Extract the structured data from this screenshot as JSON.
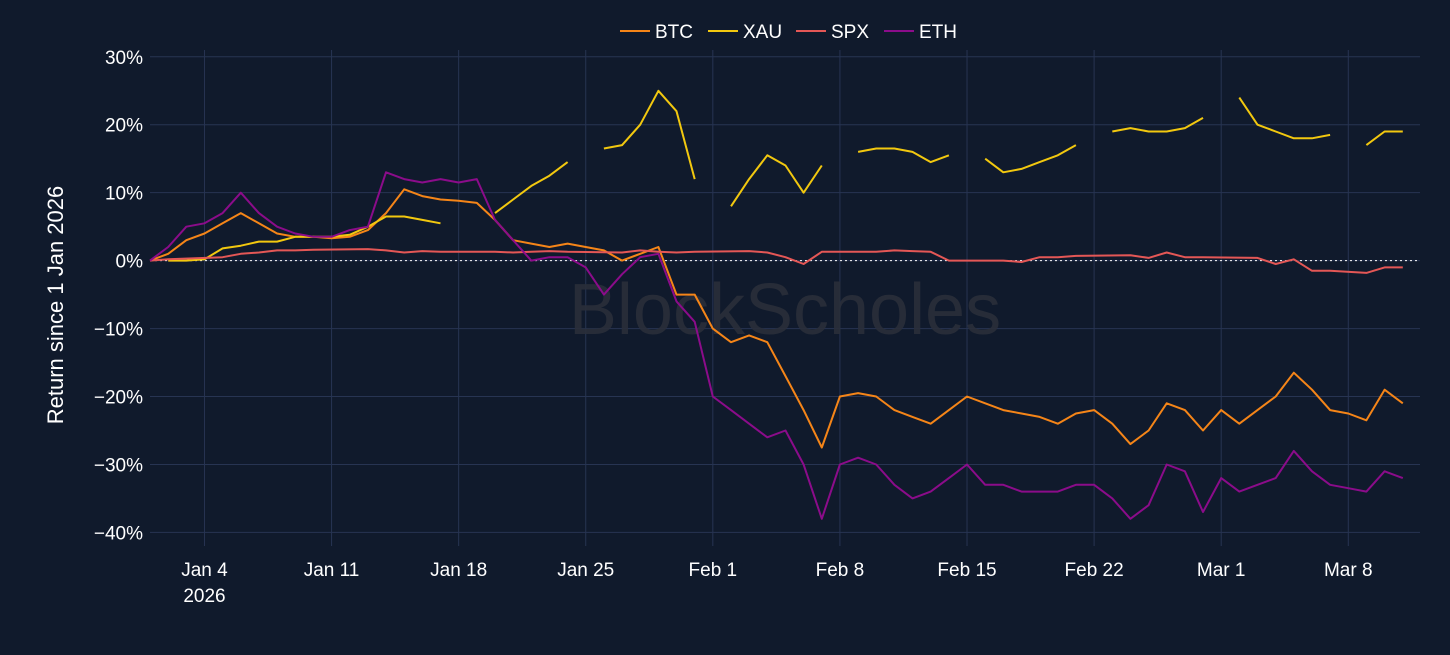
{
  "colors": {
    "background": "#101a2c",
    "grid": "#273452",
    "text": "#ffffff",
    "zero_line": "#ffffff",
    "watermark": "#2a2f3a"
  },
  "watermark": "BlockScholes",
  "chart_data": {
    "type": "line",
    "ylabel": "Return since 1 Jan 2026",
    "xlabel": "",
    "legend_position": "top-center",
    "grid": true,
    "zero_line": "dotted",
    "xlim": [
      "2026-01-01",
      "2026-03-11"
    ],
    "ylim": [
      -0.42,
      0.31
    ],
    "x_ticks": [
      {
        "date": "2026-01-04",
        "label": "Jan 4",
        "sublabel": "2026"
      },
      {
        "date": "2026-01-11",
        "label": "Jan 11"
      },
      {
        "date": "2026-01-18",
        "label": "Jan 18"
      },
      {
        "date": "2026-01-25",
        "label": "Jan 25"
      },
      {
        "date": "2026-02-01",
        "label": "Feb 1"
      },
      {
        "date": "2026-02-08",
        "label": "Feb 8"
      },
      {
        "date": "2026-02-15",
        "label": "Feb 15"
      },
      {
        "date": "2026-02-22",
        "label": "Feb 22"
      },
      {
        "date": "2026-03-01",
        "label": "Mar 1"
      },
      {
        "date": "2026-03-08",
        "label": "Mar 8"
      }
    ],
    "y_ticks": [
      {
        "value": 0.3,
        "label": "30%"
      },
      {
        "value": 0.2,
        "label": "20%"
      },
      {
        "value": 0.1,
        "label": "10%"
      },
      {
        "value": 0.0,
        "label": "0%"
      },
      {
        "value": -0.1,
        "label": "−10%"
      },
      {
        "value": -0.2,
        "label": "−20%"
      },
      {
        "value": -0.3,
        "label": "−30%"
      },
      {
        "value": -0.4,
        "label": "−40%"
      }
    ],
    "series": [
      {
        "name": "BTC",
        "color": "#f58518",
        "points": [
          [
            "2026-01-01",
            0.0
          ],
          [
            "2026-01-02",
            0.01
          ],
          [
            "2026-01-03",
            0.03
          ],
          [
            "2026-01-04",
            0.04
          ],
          [
            "2026-01-05",
            0.055
          ],
          [
            "2026-01-06",
            0.07
          ],
          [
            "2026-01-07",
            0.055
          ],
          [
            "2026-01-08",
            0.04
          ],
          [
            "2026-01-09",
            0.035
          ],
          [
            "2026-01-10",
            0.035
          ],
          [
            "2026-01-11",
            0.033
          ],
          [
            "2026-01-12",
            0.035
          ],
          [
            "2026-01-13",
            0.045
          ],
          [
            "2026-01-14",
            0.07
          ],
          [
            "2026-01-15",
            0.105
          ],
          [
            "2026-01-16",
            0.095
          ],
          [
            "2026-01-17",
            0.09
          ],
          [
            "2026-01-18",
            0.088
          ],
          [
            "2026-01-19",
            0.085
          ],
          [
            "2026-01-20",
            0.06
          ],
          [
            "2026-01-21",
            0.03
          ],
          [
            "2026-01-22",
            0.025
          ],
          [
            "2026-01-23",
            0.02
          ],
          [
            "2026-01-24",
            0.025
          ],
          [
            "2026-01-25",
            0.02
          ],
          [
            "2026-01-26",
            0.015
          ],
          [
            "2026-01-27",
            0.0
          ],
          [
            "2026-01-28",
            0.01
          ],
          [
            "2026-01-29",
            0.02
          ],
          [
            "2026-01-30",
            -0.05
          ],
          [
            "2026-01-31",
            -0.05
          ],
          [
            "2026-02-01",
            -0.1
          ],
          [
            "2026-02-02",
            -0.12
          ],
          [
            "2026-02-03",
            -0.11
          ],
          [
            "2026-02-04",
            -0.12
          ],
          [
            "2026-02-05",
            -0.17
          ],
          [
            "2026-02-06",
            -0.22
          ],
          [
            "2026-02-07",
            -0.275
          ],
          [
            "2026-02-08",
            -0.2
          ],
          [
            "2026-02-09",
            -0.195
          ],
          [
            "2026-02-10",
            -0.2
          ],
          [
            "2026-02-11",
            -0.22
          ],
          [
            "2026-02-12",
            -0.23
          ],
          [
            "2026-02-13",
            -0.24
          ],
          [
            "2026-02-14",
            -0.22
          ],
          [
            "2026-02-15",
            -0.2
          ],
          [
            "2026-02-16",
            -0.21
          ],
          [
            "2026-02-17",
            -0.22
          ],
          [
            "2026-02-18",
            -0.225
          ],
          [
            "2026-02-19",
            -0.23
          ],
          [
            "2026-02-20",
            -0.24
          ],
          [
            "2026-02-21",
            -0.225
          ],
          [
            "2026-02-22",
            -0.22
          ],
          [
            "2026-02-23",
            -0.24
          ],
          [
            "2026-02-24",
            -0.27
          ],
          [
            "2026-02-25",
            -0.25
          ],
          [
            "2026-02-26",
            -0.21
          ],
          [
            "2026-02-27",
            -0.22
          ],
          [
            "2026-02-28",
            -0.25
          ],
          [
            "2026-03-01",
            -0.22
          ],
          [
            "2026-03-02",
            -0.24
          ],
          [
            "2026-03-03",
            -0.22
          ],
          [
            "2026-03-04",
            -0.2
          ],
          [
            "2026-03-05",
            -0.165
          ],
          [
            "2026-03-06",
            -0.19
          ],
          [
            "2026-03-07",
            -0.22
          ],
          [
            "2026-03-08",
            -0.225
          ],
          [
            "2026-03-09",
            -0.235
          ],
          [
            "2026-03-10",
            -0.19
          ],
          [
            "2026-03-11",
            -0.21
          ]
        ]
      },
      {
        "name": "XAU",
        "color": "#f2c80f",
        "points": [
          [
            "2026-01-02",
            0.0
          ],
          [
            "2026-01-03",
            0.0
          ],
          [
            "2026-01-04",
            0.002
          ],
          [
            "2026-01-05",
            0.018
          ],
          [
            "2026-01-06",
            0.022
          ],
          [
            "2026-01-07",
            0.028
          ],
          [
            "2026-01-08",
            0.028
          ],
          [
            "2026-01-09",
            0.035
          ],
          [
            "2026-01-10",
            0.035
          ],
          [
            "2026-01-11",
            0.035
          ],
          [
            "2026-01-12",
            0.038
          ],
          [
            "2026-01-13",
            0.05
          ],
          [
            "2026-01-14",
            0.065
          ],
          [
            "2026-01-15",
            0.065
          ],
          [
            "2026-01-16",
            0.06
          ],
          [
            "2026-01-17",
            0.055
          ],
          null,
          [
            "2026-01-20",
            0.07
          ],
          [
            "2026-01-21",
            0.09
          ],
          [
            "2026-01-22",
            0.11
          ],
          [
            "2026-01-23",
            0.125
          ],
          [
            "2026-01-24",
            0.145
          ],
          null,
          [
            "2026-01-26",
            0.165
          ],
          [
            "2026-01-27",
            0.17
          ],
          [
            "2026-01-28",
            0.2
          ],
          [
            "2026-01-29",
            0.25
          ],
          [
            "2026-01-30",
            0.22
          ],
          [
            "2026-01-31",
            0.12
          ],
          null,
          [
            "2026-02-02",
            0.08
          ],
          [
            "2026-02-03",
            0.12
          ],
          [
            "2026-02-04",
            0.155
          ],
          [
            "2026-02-05",
            0.14
          ],
          [
            "2026-02-06",
            0.1
          ],
          [
            "2026-02-07",
            0.14
          ],
          null,
          [
            "2026-02-09",
            0.16
          ],
          [
            "2026-02-10",
            0.165
          ],
          [
            "2026-02-11",
            0.165
          ],
          [
            "2026-02-12",
            0.16
          ],
          [
            "2026-02-13",
            0.145
          ],
          [
            "2026-02-14",
            0.155
          ],
          null,
          [
            "2026-02-16",
            0.15
          ],
          [
            "2026-02-17",
            0.13
          ],
          [
            "2026-02-18",
            0.135
          ],
          [
            "2026-02-19",
            0.145
          ],
          [
            "2026-02-20",
            0.155
          ],
          [
            "2026-02-21",
            0.17
          ],
          null,
          [
            "2026-02-23",
            0.19
          ],
          [
            "2026-02-24",
            0.195
          ],
          [
            "2026-02-25",
            0.19
          ],
          [
            "2026-02-26",
            0.19
          ],
          [
            "2026-02-27",
            0.195
          ],
          [
            "2026-02-28",
            0.21
          ],
          null,
          [
            "2026-03-02",
            0.24
          ],
          [
            "2026-03-03",
            0.2
          ],
          [
            "2026-03-04",
            0.19
          ],
          [
            "2026-03-05",
            0.18
          ],
          [
            "2026-03-06",
            0.18
          ],
          [
            "2026-03-07",
            0.185
          ],
          null,
          [
            "2026-03-09",
            0.17
          ],
          [
            "2026-03-10",
            0.19
          ],
          [
            "2026-03-11",
            0.19
          ]
        ]
      },
      {
        "name": "SPX",
        "color": "#e45756",
        "points": [
          [
            "2026-01-01",
            0.0
          ],
          [
            "2026-01-02",
            0.002
          ],
          [
            "2026-01-05",
            0.005
          ],
          [
            "2026-01-06",
            0.01
          ],
          [
            "2026-01-07",
            0.012
          ],
          [
            "2026-01-08",
            0.015
          ],
          [
            "2026-01-09",
            0.015
          ],
          [
            "2026-01-10",
            0.016
          ],
          [
            "2026-01-13",
            0.017
          ],
          [
            "2026-01-14",
            0.015
          ],
          [
            "2026-01-15",
            0.012
          ],
          [
            "2026-01-16",
            0.014
          ],
          [
            "2026-01-17",
            0.013
          ],
          [
            "2026-01-20",
            0.013
          ],
          [
            "2026-01-21",
            0.012
          ],
          [
            "2026-01-22",
            0.013
          ],
          [
            "2026-01-23",
            0.014
          ],
          [
            "2026-01-24",
            0.013
          ],
          [
            "2026-01-27",
            0.012
          ],
          [
            "2026-01-28",
            0.015
          ],
          [
            "2026-01-29",
            0.013
          ],
          [
            "2026-01-30",
            0.012
          ],
          [
            "2026-01-31",
            0.013
          ],
          [
            "2026-02-03",
            0.014
          ],
          [
            "2026-02-04",
            0.012
          ],
          [
            "2026-02-05",
            0.005
          ],
          [
            "2026-02-06",
            -0.005
          ],
          [
            "2026-02-07",
            0.013
          ],
          [
            "2026-02-10",
            0.013
          ],
          [
            "2026-02-11",
            0.015
          ],
          [
            "2026-02-12",
            0.014
          ],
          [
            "2026-02-13",
            0.013
          ],
          [
            "2026-02-14",
            0.0
          ],
          [
            "2026-02-17",
            0.0
          ],
          [
            "2026-02-18",
            -0.002
          ],
          [
            "2026-02-19",
            0.005
          ],
          [
            "2026-02-20",
            0.005
          ],
          [
            "2026-02-21",
            0.007
          ],
          [
            "2026-02-24",
            0.008
          ],
          [
            "2026-02-25",
            0.004
          ],
          [
            "2026-02-26",
            0.012
          ],
          [
            "2026-02-27",
            0.005
          ],
          [
            "2026-02-28",
            0.005
          ],
          [
            "2026-03-03",
            0.004
          ],
          [
            "2026-03-04",
            -0.005
          ],
          [
            "2026-03-05",
            0.002
          ],
          [
            "2026-03-06",
            -0.015
          ],
          [
            "2026-03-07",
            -0.015
          ],
          [
            "2026-03-09",
            -0.018
          ],
          [
            "2026-03-10",
            -0.01
          ],
          [
            "2026-03-11",
            -0.01
          ]
        ]
      },
      {
        "name": "ETH",
        "color": "#8b0c8a",
        "points": [
          [
            "2026-01-01",
            0.0
          ],
          [
            "2026-01-02",
            0.02
          ],
          [
            "2026-01-03",
            0.05
          ],
          [
            "2026-01-04",
            0.055
          ],
          [
            "2026-01-05",
            0.07
          ],
          [
            "2026-01-06",
            0.1
          ],
          [
            "2026-01-07",
            0.07
          ],
          [
            "2026-01-08",
            0.05
          ],
          [
            "2026-01-09",
            0.04
          ],
          [
            "2026-01-10",
            0.035
          ],
          [
            "2026-01-11",
            0.035
          ],
          [
            "2026-01-12",
            0.045
          ],
          [
            "2026-01-13",
            0.05
          ],
          [
            "2026-01-14",
            0.13
          ],
          [
            "2026-01-15",
            0.12
          ],
          [
            "2026-01-16",
            0.115
          ],
          [
            "2026-01-17",
            0.12
          ],
          [
            "2026-01-18",
            0.115
          ],
          [
            "2026-01-19",
            0.12
          ],
          [
            "2026-01-20",
            0.06
          ],
          [
            "2026-01-21",
            0.03
          ],
          [
            "2026-01-22",
            0.0
          ],
          [
            "2026-01-23",
            0.005
          ],
          [
            "2026-01-24",
            0.005
          ],
          [
            "2026-01-25",
            -0.01
          ],
          [
            "2026-01-26",
            -0.05
          ],
          [
            "2026-01-27",
            -0.02
          ],
          [
            "2026-01-28",
            0.005
          ],
          [
            "2026-01-29",
            0.01
          ],
          [
            "2026-01-30",
            -0.06
          ],
          [
            "2026-01-31",
            -0.09
          ],
          [
            "2026-02-01",
            -0.2
          ],
          [
            "2026-02-02",
            -0.22
          ],
          [
            "2026-02-03",
            -0.24
          ],
          [
            "2026-02-04",
            -0.26
          ],
          [
            "2026-02-05",
            -0.25
          ],
          [
            "2026-02-06",
            -0.3
          ],
          [
            "2026-02-07",
            -0.38
          ],
          [
            "2026-02-08",
            -0.3
          ],
          [
            "2026-02-09",
            -0.29
          ],
          [
            "2026-02-10",
            -0.3
          ],
          [
            "2026-02-11",
            -0.33
          ],
          [
            "2026-02-12",
            -0.35
          ],
          [
            "2026-02-13",
            -0.34
          ],
          [
            "2026-02-14",
            -0.32
          ],
          [
            "2026-02-15",
            -0.3
          ],
          [
            "2026-02-16",
            -0.33
          ],
          [
            "2026-02-17",
            -0.33
          ],
          [
            "2026-02-18",
            -0.34
          ],
          [
            "2026-02-19",
            -0.34
          ],
          [
            "2026-02-20",
            -0.34
          ],
          [
            "2026-02-21",
            -0.33
          ],
          [
            "2026-02-22",
            -0.33
          ],
          [
            "2026-02-23",
            -0.35
          ],
          [
            "2026-02-24",
            -0.38
          ],
          [
            "2026-02-25",
            -0.36
          ],
          [
            "2026-02-26",
            -0.3
          ],
          [
            "2026-02-27",
            -0.31
          ],
          [
            "2026-02-28",
            -0.37
          ],
          [
            "2026-03-01",
            -0.32
          ],
          [
            "2026-03-02",
            -0.34
          ],
          [
            "2026-03-03",
            -0.33
          ],
          [
            "2026-03-04",
            -0.32
          ],
          [
            "2026-03-05",
            -0.28
          ],
          [
            "2026-03-06",
            -0.31
          ],
          [
            "2026-03-07",
            -0.33
          ],
          [
            "2026-03-08",
            -0.335
          ],
          [
            "2026-03-09",
            -0.34
          ],
          [
            "2026-03-10",
            -0.31
          ],
          [
            "2026-03-11",
            -0.32
          ]
        ]
      }
    ]
  }
}
